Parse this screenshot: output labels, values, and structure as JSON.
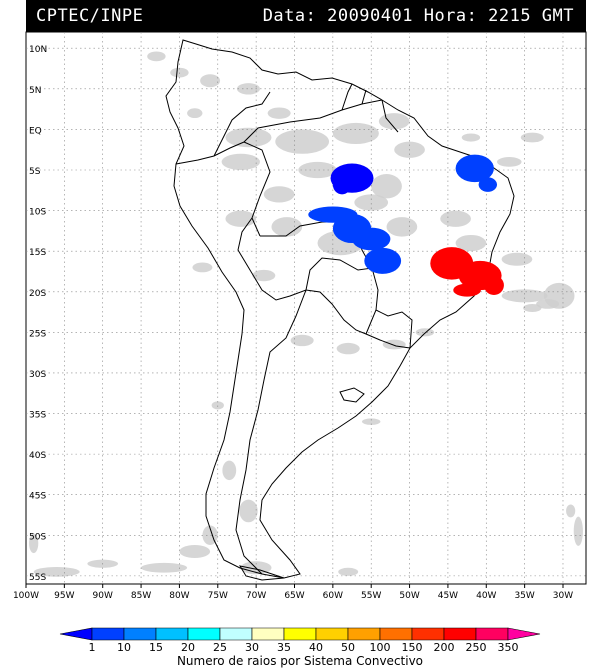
{
  "header": {
    "source": "CPTEC/INPE",
    "datetime": "Data: 20090401 Hora: 2215 GMT"
  },
  "axes": {
    "lat_labels": [
      "10N",
      "5N",
      "EQ",
      "5S",
      "10S",
      "15S",
      "20S",
      "25S",
      "30S",
      "35S",
      "40S",
      "45S",
      "50S",
      "55S"
    ],
    "lat_values": [
      10,
      5,
      0,
      -5,
      -10,
      -15,
      -20,
      -25,
      -30,
      -35,
      -40,
      -45,
      -50,
      -55
    ],
    "lon_labels": [
      "100W",
      "95W",
      "90W",
      "85W",
      "80W",
      "75W",
      "70W",
      "65W",
      "60W",
      "55W",
      "50W",
      "45W",
      "40W",
      "35W",
      "30W"
    ],
    "lon_values": [
      -100,
      -95,
      -90,
      -85,
      -80,
      -75,
      -70,
      -65,
      -60,
      -55,
      -50,
      -45,
      -40,
      -35,
      -30
    ],
    "lon_range": [
      -100,
      -27
    ],
    "lat_range": [
      12,
      -56
    ]
  },
  "legend": {
    "labels": [
      "1",
      "10",
      "15",
      "20",
      "25",
      "30",
      "35",
      "40",
      "50",
      "100",
      "150",
      "200",
      "250",
      "350"
    ],
    "colors": [
      "#0000ff",
      "#0040ff",
      "#0080ff",
      "#00c0ff",
      "#00ffff",
      "#c0ffff",
      "#ffffc0",
      "#ffff00",
      "#ffd000",
      "#ffa000",
      "#ff7000",
      "#ff3000",
      "#ff0000",
      "#ff0060",
      "#ff00a0"
    ],
    "title": "Numero de raios por Sistema Convectivo"
  },
  "lightning_clusters": [
    {
      "color": "#0000ff",
      "lon": -57.5,
      "lat": -6.0,
      "rx": 2.8,
      "ry": 1.8
    },
    {
      "color": "#0000ff",
      "lon": -58.8,
      "lat": -6.8,
      "rx": 1.2,
      "ry": 1.2
    },
    {
      "color": "#0040ff",
      "lon": -60.0,
      "lat": -10.5,
      "rx": 3.2,
      "ry": 1.0
    },
    {
      "color": "#0040ff",
      "lon": -57.5,
      "lat": -12.2,
      "rx": 2.5,
      "ry": 1.8
    },
    {
      "color": "#0040ff",
      "lon": -55.0,
      "lat": -13.5,
      "rx": 2.5,
      "ry": 1.4
    },
    {
      "color": "#0040ff",
      "lon": -53.5,
      "lat": -16.2,
      "rx": 2.4,
      "ry": 1.6
    },
    {
      "color": "#0040ff",
      "lon": -41.5,
      "lat": -4.8,
      "rx": 2.5,
      "ry": 1.7
    },
    {
      "color": "#0040ff",
      "lon": -39.8,
      "lat": -6.8,
      "rx": 1.2,
      "ry": 0.9
    },
    {
      "color": "#ff0000",
      "lon": -44.5,
      "lat": -16.5,
      "rx": 2.8,
      "ry": 2.0
    },
    {
      "color": "#ff0000",
      "lon": -40.8,
      "lat": -18.0,
      "rx": 2.8,
      "ry": 1.8
    },
    {
      "color": "#ff0000",
      "lon": -39.0,
      "lat": -19.2,
      "rx": 1.3,
      "ry": 1.2
    },
    {
      "color": "#ff0000",
      "lon": -42.5,
      "lat": -19.8,
      "rx": 1.8,
      "ry": 0.8
    }
  ],
  "cloud_patches": [
    {
      "lon": -71,
      "lat": -1,
      "rx": 3,
      "ry": 1.2
    },
    {
      "lon": -64,
      "lat": -1.5,
      "rx": 3.5,
      "ry": 1.5
    },
    {
      "lon": -57,
      "lat": -0.5,
      "rx": 3,
      "ry": 1.3
    },
    {
      "lon": -52,
      "lat": 1,
      "rx": 2,
      "ry": 1
    },
    {
      "lon": -50,
      "lat": -2.5,
      "rx": 2,
      "ry": 1
    },
    {
      "lon": -72,
      "lat": -4,
      "rx": 2.5,
      "ry": 1
    },
    {
      "lon": -62,
      "lat": -5,
      "rx": 2.5,
      "ry": 1
    },
    {
      "lon": -53,
      "lat": -7,
      "rx": 2,
      "ry": 1.5
    },
    {
      "lon": -67,
      "lat": -8,
      "rx": 2,
      "ry": 1
    },
    {
      "lon": -55,
      "lat": -9,
      "rx": 2.2,
      "ry": 1
    },
    {
      "lon": -72,
      "lat": -11,
      "rx": 2,
      "ry": 1
    },
    {
      "lon": -66,
      "lat": -12,
      "rx": 2,
      "ry": 1.2
    },
    {
      "lon": -59,
      "lat": -14,
      "rx": 3,
      "ry": 1.5
    },
    {
      "lon": -51,
      "lat": -12,
      "rx": 2,
      "ry": 1.2
    },
    {
      "lon": -44,
      "lat": -11,
      "rx": 2,
      "ry": 1
    },
    {
      "lon": -42,
      "lat": -14,
      "rx": 2,
      "ry": 1
    },
    {
      "lon": -36,
      "lat": -16,
      "rx": 2,
      "ry": 0.8
    },
    {
      "lon": -37,
      "lat": -4,
      "rx": 1.6,
      "ry": 0.6
    },
    {
      "lon": -34,
      "lat": -1,
      "rx": 1.5,
      "ry": 0.6
    },
    {
      "lon": -42,
      "lat": -1,
      "rx": 1.2,
      "ry": 0.5
    },
    {
      "lon": -35,
      "lat": -20.5,
      "rx": 3,
      "ry": 0.8
    },
    {
      "lon": -30.5,
      "lat": -20.5,
      "rx": 2,
      "ry": 1.6
    },
    {
      "lon": -32,
      "lat": -21.5,
      "rx": 1.5,
      "ry": 0.6
    },
    {
      "lon": -34,
      "lat": -22,
      "rx": 1.2,
      "ry": 0.5
    },
    {
      "lon": -83,
      "lat": 9,
      "rx": 1.2,
      "ry": 0.6
    },
    {
      "lon": -80,
      "lat": 7,
      "rx": 1.2,
      "ry": 0.6
    },
    {
      "lon": -76,
      "lat": 6,
      "rx": 1.3,
      "ry": 0.8
    },
    {
      "lon": -71,
      "lat": 5,
      "rx": 1.5,
      "ry": 0.7
    },
    {
      "lon": -67,
      "lat": 2,
      "rx": 1.5,
      "ry": 0.7
    },
    {
      "lon": -78,
      "lat": 2,
      "rx": 1,
      "ry": 0.6
    },
    {
      "lon": -77,
      "lat": -17,
      "rx": 1.3,
      "ry": 0.6
    },
    {
      "lon": -69,
      "lat": -18,
      "rx": 1.5,
      "ry": 0.7
    },
    {
      "lon": -64,
      "lat": -26,
      "rx": 1.5,
      "ry": 0.7
    },
    {
      "lon": -58,
      "lat": -27,
      "rx": 1.5,
      "ry": 0.7
    },
    {
      "lon": -52,
      "lat": -26.5,
      "rx": 1.5,
      "ry": 0.6
    },
    {
      "lon": -48,
      "lat": -25,
      "rx": 1.2,
      "ry": 0.5
    },
    {
      "lon": -73.5,
      "lat": -42,
      "rx": 0.9,
      "ry": 1.2
    },
    {
      "lon": -71,
      "lat": -47,
      "rx": 1.2,
      "ry": 1.4
    },
    {
      "lon": -76,
      "lat": -50,
      "rx": 1,
      "ry": 1.2
    },
    {
      "lon": -78,
      "lat": -52,
      "rx": 2,
      "ry": 0.8
    },
    {
      "lon": -70,
      "lat": -54,
      "rx": 2,
      "ry": 0.8
    },
    {
      "lon": -82,
      "lat": -54,
      "rx": 3,
      "ry": 0.6
    },
    {
      "lon": -96,
      "lat": -54.5,
      "rx": 3,
      "ry": 0.6
    },
    {
      "lon": -99,
      "lat": -51,
      "rx": 0.6,
      "ry": 1.2
    },
    {
      "lon": -90,
      "lat": -53.5,
      "rx": 2,
      "ry": 0.5
    },
    {
      "lon": -58,
      "lat": -54.5,
      "rx": 1.3,
      "ry": 0.5
    },
    {
      "lon": -28,
      "lat": -49.5,
      "rx": 0.6,
      "ry": 1.8
    },
    {
      "lon": -29,
      "lat": -47,
      "rx": 0.6,
      "ry": 0.8
    },
    {
      "lon": -55,
      "lat": -36,
      "rx": 1.2,
      "ry": 0.4
    },
    {
      "lon": -75,
      "lat": -34,
      "rx": 0.8,
      "ry": 0.5
    }
  ]
}
